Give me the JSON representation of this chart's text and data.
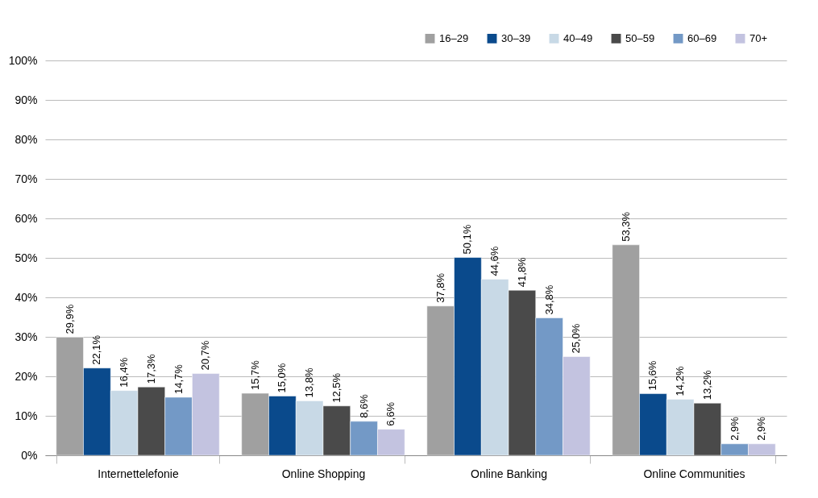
{
  "chart_data": {
    "type": "bar",
    "categories": [
      "Internettelefonie",
      "Online Shopping",
      "Online Banking",
      "Online Communities"
    ],
    "ylim": [
      0,
      100
    ],
    "yticks": [
      {
        "value": 0,
        "label": "0%"
      },
      {
        "value": 10,
        "label": "10%"
      },
      {
        "value": 20,
        "label": "20%"
      },
      {
        "value": 30,
        "label": "30%"
      },
      {
        "value": 40,
        "label": "40%"
      },
      {
        "value": 50,
        "label": "50%"
      },
      {
        "value": 60,
        "label": "60%"
      },
      {
        "value": 70,
        "label": "70%"
      },
      {
        "value": 80,
        "label": "80%"
      },
      {
        "value": 90,
        "label": "90%"
      },
      {
        "value": 100,
        "label": "100%"
      }
    ],
    "grid": "y",
    "legend": "top right",
    "series": [
      {
        "name": "16–29",
        "color": "#a0a0a0",
        "values": [
          29.9,
          15.7,
          37.8,
          53.3
        ],
        "value_labels": [
          "29,9%",
          "15,7%",
          "37,8%",
          "53,3%"
        ]
      },
      {
        "name": "30–39",
        "color": "#0a4a8c",
        "values": [
          22.1,
          15.0,
          50.1,
          15.6
        ],
        "value_labels": [
          "22,1%",
          "15,0%",
          "50,1%",
          "15,6%"
        ]
      },
      {
        "name": "40–49",
        "color": "#c8d9e6",
        "values": [
          16.4,
          13.8,
          44.6,
          14.2
        ],
        "value_labels": [
          "16,4%",
          "13,8%",
          "44,6%",
          "14,2%"
        ]
      },
      {
        "name": "50–59",
        "color": "#4a4a4a",
        "values": [
          17.3,
          12.5,
          41.8,
          13.2
        ],
        "value_labels": [
          "17,3%",
          "12,5%",
          "41,8%",
          "13,2%"
        ]
      },
      {
        "name": "60–69",
        "color": "#7399c6",
        "values": [
          14.7,
          8.6,
          34.8,
          2.9
        ],
        "value_labels": [
          "14,7%",
          "8,6%",
          "34,8%",
          "2,9%"
        ]
      },
      {
        "name": "70+",
        "color": "#c3c3e0",
        "values": [
          20.7,
          6.6,
          25.0,
          2.9
        ],
        "value_labels": [
          "20,7%",
          "6,6%",
          "25,0%",
          "2,9%"
        ]
      }
    ]
  }
}
